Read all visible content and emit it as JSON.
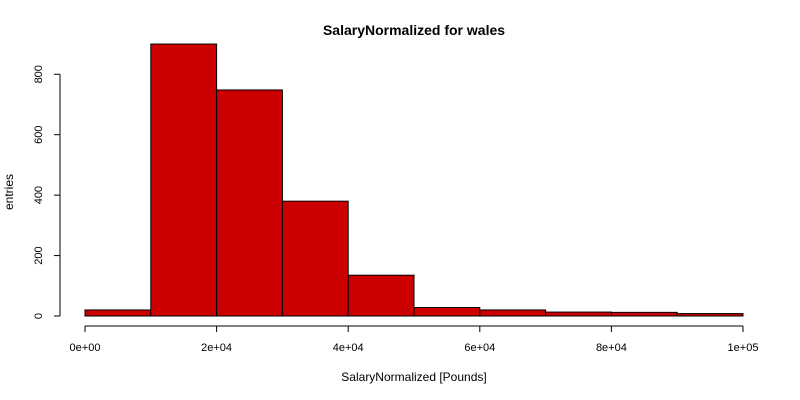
{
  "chart_data": {
    "type": "bar",
    "title": "SalaryNormalized for wales",
    "xlabel": "SalaryNormalized [Pounds]",
    "ylabel": "entries",
    "bin_edges": [
      0,
      10000,
      20000,
      30000,
      40000,
      50000,
      60000,
      70000,
      80000,
      90000,
      100000
    ],
    "values": [
      20,
      900,
      748,
      380,
      135,
      28,
      20,
      13,
      12,
      8
    ],
    "xlim": [
      0,
      100000
    ],
    "ylim": [
      0,
      920
    ],
    "x_ticks": [
      0,
      20000,
      40000,
      60000,
      80000,
      100000
    ],
    "x_tick_labels": [
      "0e+00",
      "2e+04",
      "4e+04",
      "6e+04",
      "8e+04",
      "1e+05"
    ],
    "y_ticks": [
      0,
      200,
      400,
      600,
      800
    ],
    "y_tick_labels": [
      "0",
      "200",
      "400",
      "600",
      "800"
    ],
    "bar_color": "#cc0000",
    "grid": false,
    "legend": "none"
  }
}
